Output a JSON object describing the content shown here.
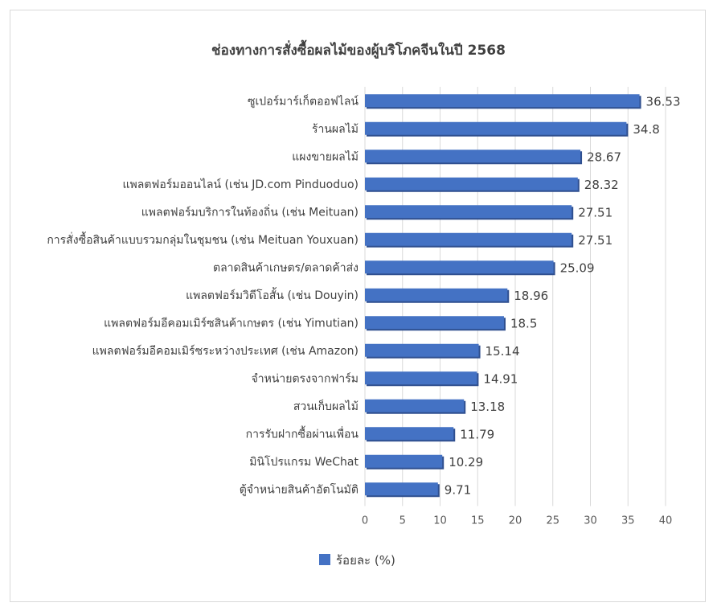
{
  "chart_data": {
    "type": "bar",
    "orientation": "horizontal",
    "title": "ช่องทางการสั่งซื้อผลไม้ของผู้บริโภคจีนในปี 2568",
    "xlabel": "",
    "ylabel": "",
    "categories": [
      "ซูเปอร์มาร์เก็ตออฟไลน์",
      "ร้านผลไม้",
      "แผงขายผลไม้",
      "แพลตฟอร์มออนไลน์ (เช่น JD.com Pinduoduo)",
      "แพลตฟอร์มบริการในท้องถิ่น (เช่น Meituan)",
      "การสั่งซื้อสินค้าแบบรวมกลุ่มในชุมชน (เช่น Meituan Youxuan)",
      "ตลาดสินค้าเกษตร/ตลาดค้าส่ง",
      "แพลตฟอร์มวิดีโอสั้น (เช่น Douyin)",
      "แพลตฟอร์มอีคอมเมิร์ซสินค้าเกษตร (เช่น Yimutian)",
      "แพลตฟอร์มอีคอมเมิร์ซระหว่างประเทศ (เช่น Amazon)",
      "จำหน่ายตรงจากฟาร์ม",
      "สวนเก็บผลไม้",
      "การรับฝากซื้อผ่านเพื่อน",
      "มินิโปรแกรม WeChat",
      "ตู้จำหน่ายสินค้าอัตโนมัติ"
    ],
    "series": [
      {
        "name": "ร้อยละ (%)",
        "values": [
          36.53,
          34.8,
          28.67,
          28.32,
          27.51,
          27.51,
          25.09,
          18.96,
          18.5,
          15.14,
          14.91,
          13.18,
          11.79,
          10.29,
          9.71
        ],
        "value_labels": [
          "36.53",
          "34.8",
          "28.67",
          "28.32",
          "27.51",
          "27.51",
          "25.09",
          "18.96",
          "18.5",
          "15.14",
          "14.91",
          "13.18",
          "11.79",
          "10.29",
          "9.71"
        ]
      }
    ],
    "xlim": [
      0,
      40
    ],
    "xticks": [
      "0",
      "5",
      "10",
      "15",
      "20",
      "25",
      "30",
      "35",
      "40"
    ],
    "grid": true,
    "legend": "bottom",
    "colors": {
      "bar": "#4472C4",
      "bar_shadow": "#2F4F8F",
      "grid": "#d9d9d9"
    }
  }
}
